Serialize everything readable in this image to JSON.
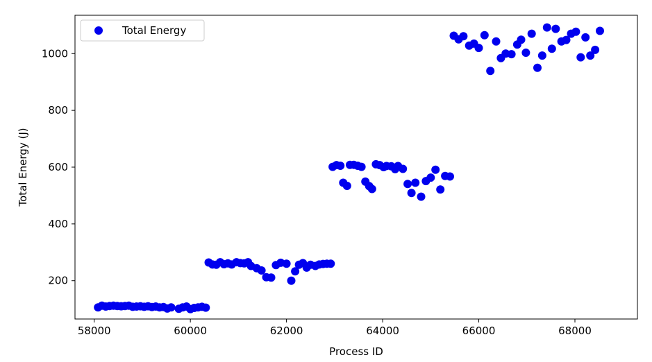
{
  "chart_data": {
    "type": "scatter",
    "title": "",
    "xlabel": "Process ID",
    "ylabel": "Total Energy (J)",
    "xlim": [
      57600,
      69300
    ],
    "ylim": [
      65,
      1135
    ],
    "xticks": [
      58000,
      60000,
      62000,
      64000,
      66000,
      68000
    ],
    "yticks": [
      200,
      400,
      600,
      800,
      1000
    ],
    "grid": false,
    "legend": {
      "position": "top-left",
      "entries": [
        "Total Energy"
      ]
    },
    "series": [
      {
        "name": "Total Energy",
        "color": "#0000ee",
        "marker": "circle",
        "points": [
          [
            58080,
            106
          ],
          [
            58160,
            112
          ],
          [
            58240,
            109
          ],
          [
            58320,
            111
          ],
          [
            58400,
            112
          ],
          [
            58480,
            111
          ],
          [
            58560,
            110
          ],
          [
            58640,
            111
          ],
          [
            58720,
            112
          ],
          [
            58800,
            108
          ],
          [
            58880,
            109
          ],
          [
            58960,
            110
          ],
          [
            59040,
            108
          ],
          [
            59120,
            110
          ],
          [
            59200,
            107
          ],
          [
            59280,
            109
          ],
          [
            59360,
            106
          ],
          [
            59440,
            107
          ],
          [
            59520,
            102
          ],
          [
            59600,
            106
          ],
          [
            59760,
            101
          ],
          [
            59840,
            106
          ],
          [
            59920,
            109
          ],
          [
            60000,
            100
          ],
          [
            60080,
            104
          ],
          [
            60160,
            106
          ],
          [
            60240,
            108
          ],
          [
            60320,
            105
          ],
          [
            60380,
            264
          ],
          [
            60460,
            257
          ],
          [
            60540,
            256
          ],
          [
            60620,
            265
          ],
          [
            60700,
            258
          ],
          [
            60780,
            261
          ],
          [
            60860,
            257
          ],
          [
            60960,
            265
          ],
          [
            61040,
            262
          ],
          [
            61120,
            261
          ],
          [
            61200,
            265
          ],
          [
            61260,
            252
          ],
          [
            61380,
            244
          ],
          [
            61480,
            236
          ],
          [
            61580,
            212
          ],
          [
            61680,
            211
          ],
          [
            61780,
            255
          ],
          [
            61880,
            263
          ],
          [
            62000,
            260
          ],
          [
            62100,
            200
          ],
          [
            62180,
            233
          ],
          [
            62260,
            256
          ],
          [
            62340,
            262
          ],
          [
            62420,
            246
          ],
          [
            62500,
            256
          ],
          [
            62600,
            252
          ],
          [
            62680,
            257
          ],
          [
            62760,
            259
          ],
          [
            62840,
            260
          ],
          [
            62920,
            260
          ],
          [
            62960,
            601
          ],
          [
            63040,
            607
          ],
          [
            63120,
            605
          ],
          [
            63180,
            545
          ],
          [
            63260,
            534
          ],
          [
            63320,
            608
          ],
          [
            63400,
            608
          ],
          [
            63480,
            605
          ],
          [
            63560,
            601
          ],
          [
            63640,
            549
          ],
          [
            63720,
            533
          ],
          [
            63780,
            523
          ],
          [
            63860,
            610
          ],
          [
            63940,
            607
          ],
          [
            64020,
            600
          ],
          [
            64080,
            604
          ],
          [
            64180,
            603
          ],
          [
            64260,
            593
          ],
          [
            64320,
            604
          ],
          [
            64420,
            594
          ],
          [
            64520,
            541
          ],
          [
            64600,
            509
          ],
          [
            64680,
            545
          ],
          [
            64800,
            496
          ],
          [
            64900,
            551
          ],
          [
            65000,
            563
          ],
          [
            65100,
            591
          ],
          [
            65200,
            521
          ],
          [
            65300,
            569
          ],
          [
            65400,
            567
          ],
          [
            65480,
            1063
          ],
          [
            65580,
            1050
          ],
          [
            65680,
            1061
          ],
          [
            65800,
            1028
          ],
          [
            65900,
            1035
          ],
          [
            66000,
            1020
          ],
          [
            66120,
            1065
          ],
          [
            66240,
            939
          ],
          [
            66360,
            1043
          ],
          [
            66460,
            984
          ],
          [
            66560,
            1000
          ],
          [
            66680,
            998
          ],
          [
            66800,
            1032
          ],
          [
            66880,
            1049
          ],
          [
            66980,
            1003
          ],
          [
            67100,
            1070
          ],
          [
            67220,
            950
          ],
          [
            67320,
            993
          ],
          [
            67420,
            1092
          ],
          [
            67520,
            1017
          ],
          [
            67600,
            1087
          ],
          [
            67720,
            1043
          ],
          [
            67820,
            1048
          ],
          [
            67920,
            1070
          ],
          [
            68020,
            1077
          ],
          [
            68120,
            987
          ],
          [
            68220,
            1057
          ],
          [
            68320,
            993
          ],
          [
            68420,
            1013
          ],
          [
            68520,
            1080
          ]
        ]
      }
    ]
  }
}
